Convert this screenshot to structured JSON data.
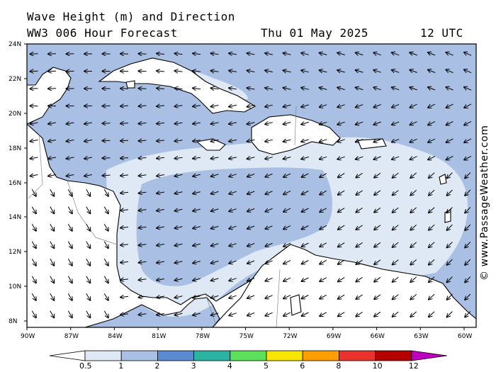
{
  "header": {
    "title": "Wave Height (m) and Direction",
    "model": "WW3 006 Hour Forecast",
    "date": "Thu 01 May 2025",
    "time": "12 UTC"
  },
  "credit": "© www.PassageWeather.com",
  "map": {
    "lat_labels": [
      "24N",
      "22N",
      "20N",
      "18N",
      "16N",
      "14N",
      "12N",
      "10N",
      "8N"
    ],
    "lon_labels": [
      "90W",
      "87W",
      "84W",
      "81W",
      "78W",
      "75W",
      "72W",
      "69W",
      "66W",
      "63W",
      "60W"
    ],
    "extent": {
      "lon_min": -90,
      "lon_max": -59.3,
      "lat_min": 7.5,
      "lat_max": 24
    },
    "wave_direction": "mostly toward west / south-west (easterly swell)"
  },
  "legend": {
    "ticks": [
      "0.5",
      "1",
      "2",
      "3",
      "4",
      "5",
      "6",
      "8",
      "10",
      "12"
    ],
    "colors": [
      "#ffffff",
      "#dfe8f5",
      "#a9c0e4",
      "#5a8ad0",
      "#2cb2a0",
      "#5de05a",
      "#f7e400",
      "#ff9e00",
      "#e8322a",
      "#b50000",
      "#c000c0"
    ]
  },
  "colors": {
    "sea_low": "#dfe8f5",
    "sea_mid": "#a9c0e4",
    "land": "#ffffff",
    "frame": "#000000"
  }
}
